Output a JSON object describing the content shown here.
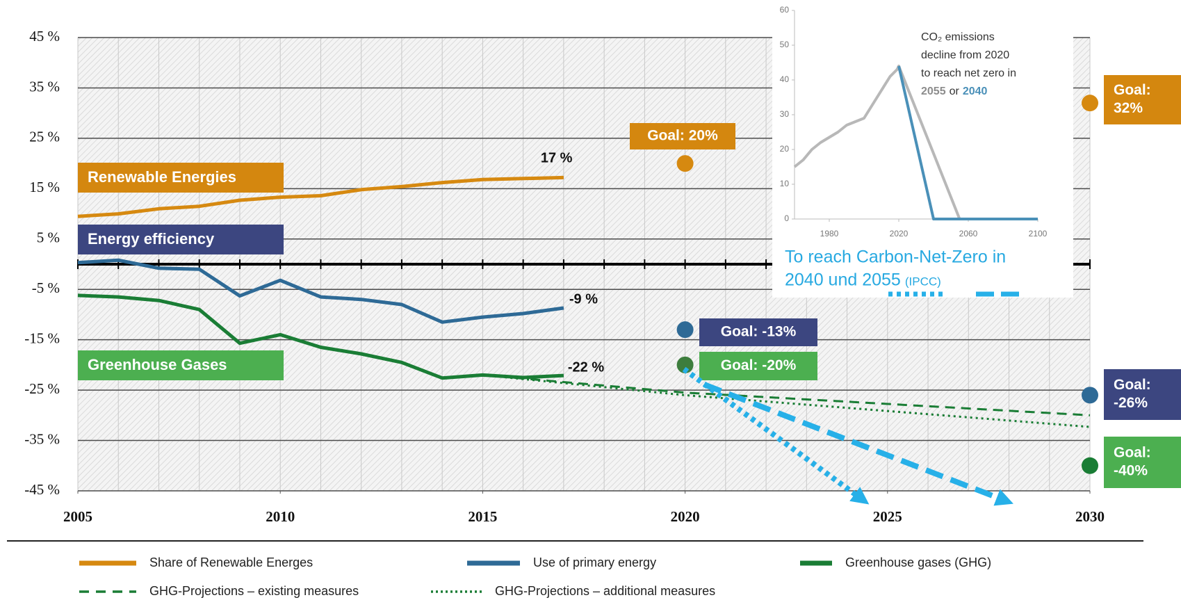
{
  "chart_data": [
    {
      "type": "line",
      "xlim": [
        2005,
        2030
      ],
      "xticks": [
        2005,
        2010,
        2015,
        2020,
        2025,
        2030
      ],
      "ylim": [
        -45,
        45
      ],
      "yticks": [
        {
          "value": 45,
          "label": "45 %"
        },
        {
          "value": 35,
          "label": "35 %"
        },
        {
          "value": 25,
          "label": "25 %"
        },
        {
          "value": 15,
          "label": "15 %"
        },
        {
          "value": 5,
          "label": "5 %"
        },
        {
          "value": -5,
          "label": "-5 %"
        },
        {
          "value": -15,
          "label": "-15 %"
        },
        {
          "value": -25,
          "label": "-25 %"
        },
        {
          "value": -35,
          "label": "-35 %"
        },
        {
          "value": -45,
          "label": "-45 %"
        }
      ],
      "grid": true,
      "series": [
        {
          "name": "Share of Renewable Energes",
          "color": "#d68910",
          "style": "solid",
          "x": [
            2005,
            2006,
            2007,
            2008,
            2009,
            2010,
            2011,
            2012,
            2013,
            2014,
            2015,
            2016,
            2017
          ],
          "values": [
            9.5,
            10,
            11,
            11.5,
            12.7,
            13.3,
            13.6,
            14.8,
            15.4,
            16.2,
            16.8,
            17.0,
            17.2
          ],
          "value_labels": [
            null,
            null,
            null,
            null,
            null,
            null,
            null,
            null,
            null,
            null,
            null,
            null,
            "17 %"
          ]
        },
        {
          "name": "Use of primary energy",
          "color": "#2e6a96",
          "style": "solid",
          "x": [
            2005,
            2006,
            2007,
            2008,
            2009,
            2010,
            2011,
            2012,
            2013,
            2014,
            2015,
            2016,
            2017
          ],
          "values": [
            0.3,
            0.8,
            -0.8,
            -1,
            -6.3,
            -3.2,
            -6.5,
            -7,
            -8,
            -11.5,
            -10.5,
            -9.8,
            -8.7
          ],
          "value_labels": [
            null,
            null,
            null,
            null,
            null,
            null,
            null,
            null,
            null,
            null,
            null,
            null,
            "-9 %"
          ]
        },
        {
          "name": "Greenhouse gases (GHG)",
          "color": "#1a7d35",
          "style": "solid",
          "x": [
            2005,
            2006,
            2007,
            2008,
            2009,
            2010,
            2011,
            2012,
            2013,
            2014,
            2015,
            2016,
            2017
          ],
          "values": [
            -6.2,
            -6.5,
            -7.2,
            -9,
            -15.7,
            -14,
            -16.5,
            -17.8,
            -19.5,
            -22.6,
            -22,
            -22.5,
            -22.1
          ],
          "value_labels": [
            null,
            null,
            null,
            null,
            null,
            null,
            null,
            null,
            null,
            null,
            null,
            null,
            "-22 %"
          ]
        },
        {
          "name": "GHG-Projections – existing measures",
          "color": "#1a7d35",
          "style": "dashed",
          "x": [
            2015,
            2020,
            2030
          ],
          "values": [
            -22,
            -25.5,
            -30
          ]
        },
        {
          "name": "GHG-Projections – additional measures",
          "color": "#1a7d35",
          "style": "dotted",
          "x": [
            2015,
            2020,
            2030
          ],
          "values": [
            -22,
            -26,
            -32.3
          ]
        }
      ],
      "captions": [
        {
          "text": "Renewable Energies",
          "color": "#d4870f"
        },
        {
          "text": "Energy efficiency",
          "color": "#3c4680"
        },
        {
          "text": "Greenhouse Gases",
          "color": "#4caf50"
        }
      ],
      "goals": [
        {
          "x": 2020,
          "value": 20,
          "color": "#d68910",
          "box_color": "#d4870f",
          "label": [
            "Goal: 20%"
          ]
        },
        {
          "x": 2020,
          "value": -13,
          "color": "#2e6a96",
          "box_color": "#3c4680",
          "label": [
            "Goal: -13%"
          ]
        },
        {
          "x": 2020,
          "value": -20,
          "color": "#3d7d3d",
          "box_color": "#4caf50",
          "label": [
            "Goal: -20%"
          ]
        },
        {
          "x": 2030,
          "value": 32,
          "color": "#d68910",
          "box_color": "#d4870f",
          "label": [
            "Goal:",
            "32%"
          ]
        },
        {
          "x": 2030,
          "value": -26,
          "color": "#2e6a96",
          "box_color": "#3c4680",
          "label": [
            "Goal:",
            "-26%"
          ]
        },
        {
          "x": 2030,
          "value": -40,
          "color": "#1a7d35",
          "box_color": "#4caf50",
          "label": [
            "Goal:",
            "-40%"
          ]
        }
      ],
      "annotation": {
        "lines": [
          "To reach Carbon-Net-Zero in",
          "2040 und 2055"
        ],
        "note": "(IPCC)"
      }
    },
    {
      "type": "line",
      "xlim": [
        1960,
        2100
      ],
      "xticks": [
        1980,
        2020,
        2060,
        2100
      ],
      "ylim": [
        0,
        60
      ],
      "yticks": [
        0,
        10,
        20,
        30,
        40,
        50,
        60
      ],
      "series": [
        {
          "color": "#b8b8b8",
          "x": [
            1960,
            1965,
            1970,
            1975,
            1980,
            1985,
            1990,
            1995,
            2000,
            2005,
            2010,
            2015,
            2019,
            2020,
            2055,
            2100
          ],
          "values": [
            15,
            17,
            20,
            22,
            23.5,
            25,
            27,
            28,
            29,
            33,
            37,
            41,
            43,
            44,
            0,
            0
          ]
        },
        {
          "color": "#4a90b8",
          "x": [
            2020,
            2040,
            2100
          ],
          "values": [
            44,
            0,
            0
          ]
        }
      ],
      "annotation": {
        "lines": [
          "CO₂ emissions",
          "decline from 2020",
          "to reach net zero in"
        ],
        "last": [
          {
            "text": "2055",
            "color": "#8c8c8c"
          },
          {
            "text": "or",
            "color": "#333333"
          },
          {
            "text": "2040",
            "color": "#4a90b8"
          }
        ]
      }
    }
  ]
}
